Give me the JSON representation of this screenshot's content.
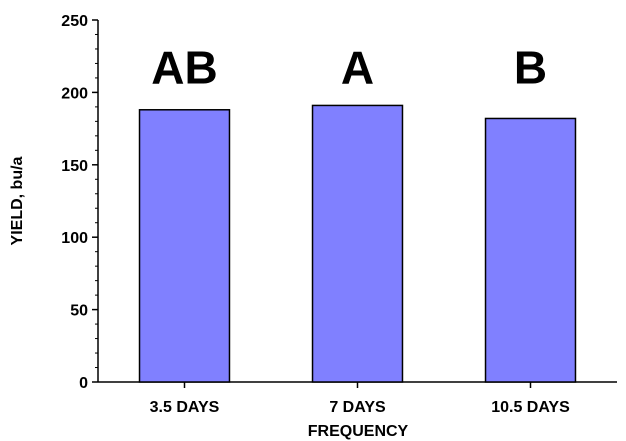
{
  "chart_data": {
    "type": "bar",
    "categories": [
      "3.5 DAYS",
      "7 DAYS",
      "10.5 DAYS"
    ],
    "values": [
      188,
      191,
      182
    ],
    "significance_letters": [
      "AB",
      "A",
      "B"
    ],
    "xlabel": "FREQUENCY",
    "ylabel": "YIELD, bu/a",
    "ylim": [
      0,
      250
    ],
    "yticks": [
      0,
      50,
      100,
      150,
      200,
      250
    ],
    "grid": false,
    "legend": "none",
    "colors": {
      "bar_fill": "#8080ff",
      "bar_stroke": "#000000",
      "axis": "#000000",
      "background": "#ffffff"
    }
  }
}
